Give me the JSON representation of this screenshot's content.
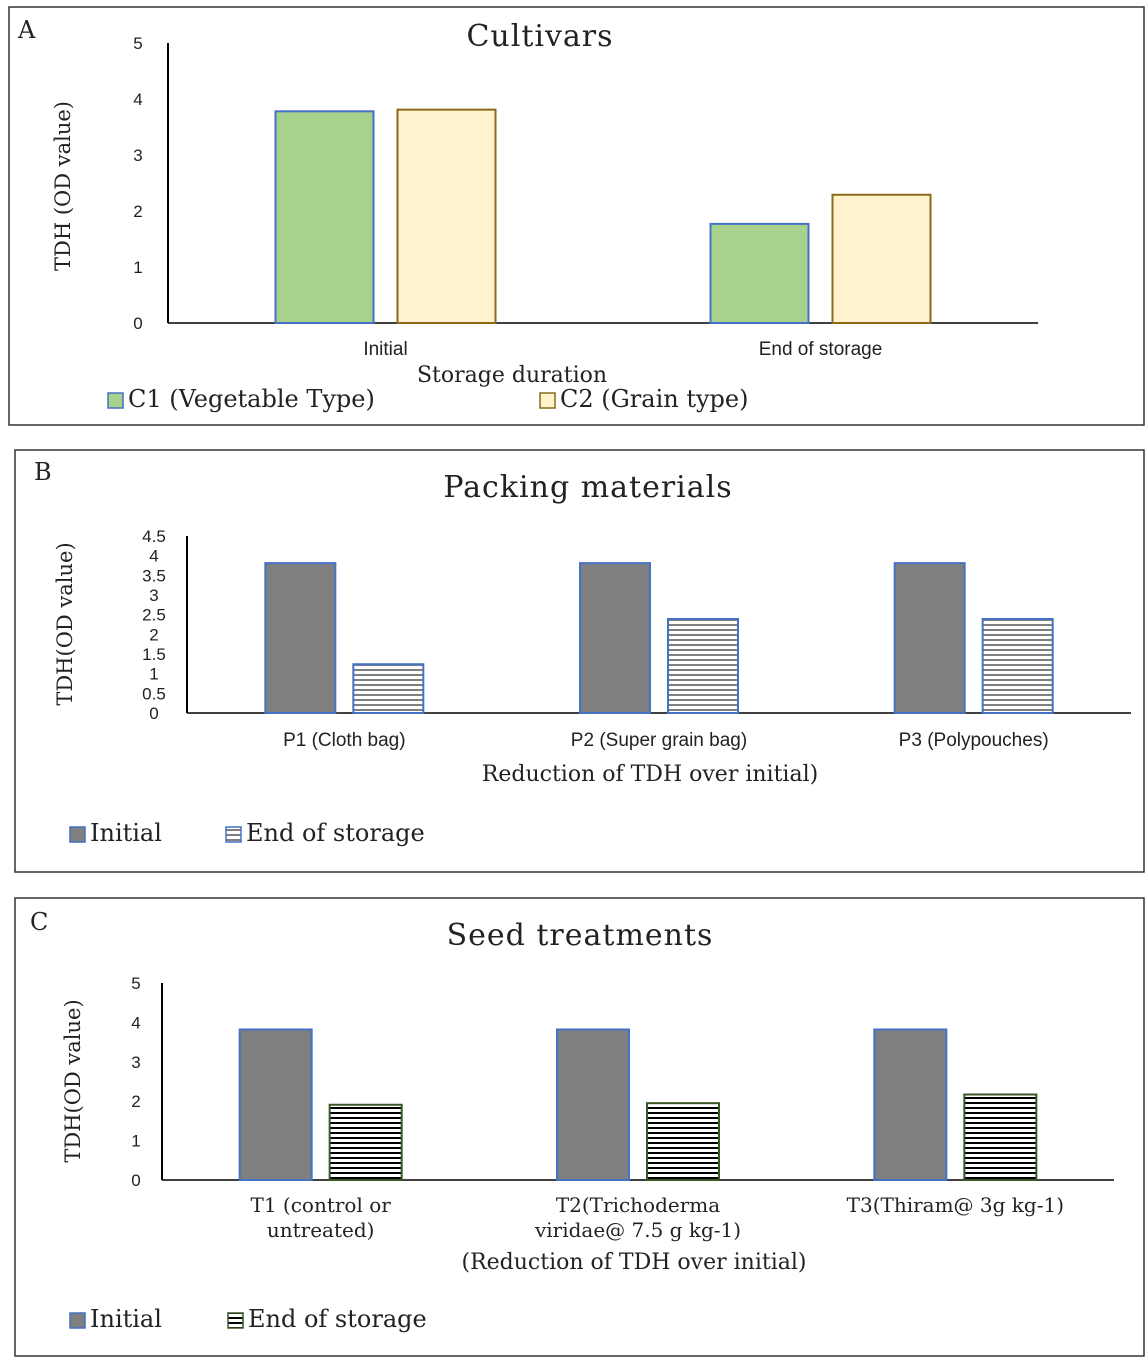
{
  "chart_data": [
    {
      "type": "bar",
      "panel_label": "A",
      "title": "Cultivars",
      "xlabel": "Storage duration",
      "ylabel": "TDH (OD value)",
      "ylim": [
        0,
        5
      ],
      "yticks": [
        "0",
        "1",
        "2",
        "3",
        "4",
        "5"
      ],
      "categories": [
        "Initial",
        "End of storage"
      ],
      "series": [
        {
          "name": "C1 (Vegetable Type)",
          "values": [
            3.78,
            1.77
          ],
          "color": "#a9d18e",
          "stroke": "#4472c4",
          "pattern": "solid"
        },
        {
          "name": "C2 (Grain type)",
          "values": [
            3.81,
            2.29
          ],
          "color": "#fff2cc",
          "stroke": "#8a6a1a",
          "pattern": "solid"
        }
      ],
      "legend_position": "bottom-left",
      "grid": false
    },
    {
      "type": "bar",
      "panel_label": "B",
      "title": "Packing materials",
      "xlabel": "Reduction of TDH over initial)",
      "ylabel": "TDH(OD value)",
      "ylim": [
        0,
        4.5
      ],
      "yticks": [
        "0",
        "0.5",
        "1",
        "1.5",
        "2",
        "2.5",
        "3",
        "3.5",
        "4",
        "4.5"
      ],
      "categories": [
        "P1 (Cloth bag)",
        "P2 (Super grain bag)",
        "P3 (Polypouches)"
      ],
      "series": [
        {
          "name": "Initial",
          "values": [
            3.81,
            3.81,
            3.81
          ],
          "color": "#7f7f7f",
          "stroke": "#4472c4",
          "pattern": "solid"
        },
        {
          "name": "End of storage",
          "values": [
            1.24,
            2.39,
            2.39
          ],
          "color": "#7f7f7f",
          "stroke": "#4472c4",
          "pattern": "stripes"
        }
      ],
      "legend_position": "bottom-left",
      "grid": false
    },
    {
      "type": "bar",
      "panel_label": "C",
      "title": "Seed treatments",
      "xlabel": "(Reduction of TDH  over initial)",
      "ylabel": "TDH(OD value)",
      "ylim": [
        0,
        5
      ],
      "yticks": [
        "0",
        "1",
        "2",
        "3",
        "4",
        "5"
      ],
      "categories": [
        "T1 (control or untreated)",
        "T2(Trichoderma viridae@ 7.5 g kg-1)",
        "T3(Thiram@ 3g kg-1)"
      ],
      "category_lines": [
        [
          "T1 (control or",
          "untreated)"
        ],
        [
          "T2(Trichoderma",
          "viridae@ 7.5 g kg-1)"
        ],
        [
          "T3(Thiram@ 3g kg-1)"
        ]
      ],
      "series": [
        {
          "name": "Initial",
          "values": [
            3.82,
            3.82,
            3.82
          ],
          "color": "#7f7f7f",
          "stroke": "#4472c4",
          "pattern": "solid"
        },
        {
          "name": "End of storage",
          "values": [
            1.91,
            1.95,
            2.17
          ],
          "color": "#000000",
          "stroke": "#385723",
          "pattern": "stripes"
        }
      ],
      "legend_position": "bottom-left",
      "grid": false
    }
  ]
}
